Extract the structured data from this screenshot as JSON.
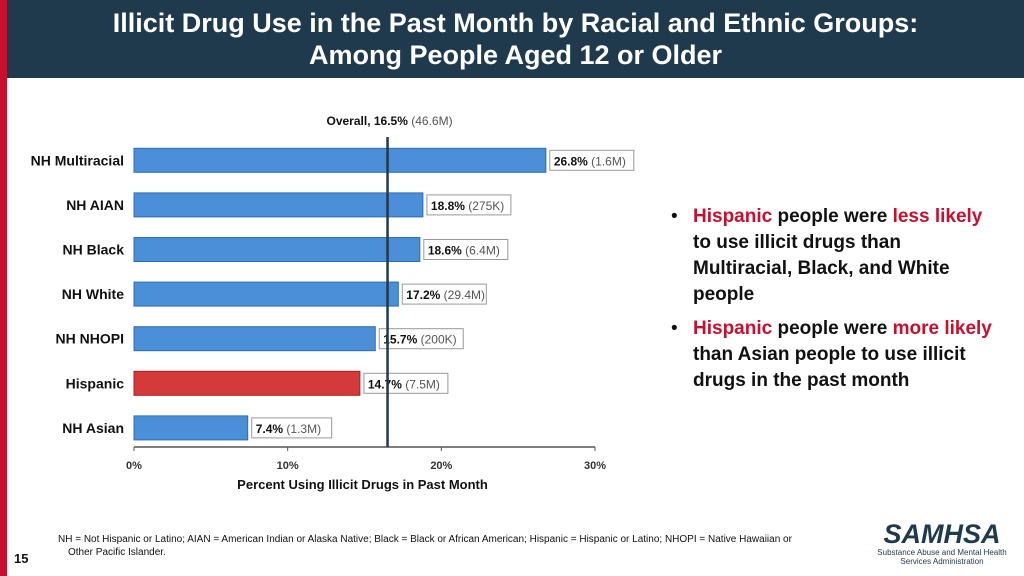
{
  "header": {
    "title_line1": "Illicit Drug Use in the Past Month by Racial and Ethnic Groups:",
    "title_line2": "Among People Aged 12 or Older"
  },
  "colors": {
    "header_bg": "#1f3a4d",
    "accent_red": "#c8102e",
    "bar_blue": "#4a8fd8",
    "bar_highlight": "#d43a3a",
    "overall_line": "#1f3a4d"
  },
  "chart_data": {
    "type": "bar",
    "orientation": "horizontal",
    "categories": [
      "NH Multiracial",
      "NH AIAN",
      "NH Black",
      "NH White",
      "NH NHOPI",
      "Hispanic",
      "NH Asian"
    ],
    "values": [
      26.8,
      18.8,
      18.6,
      17.2,
      15.7,
      14.7,
      7.4
    ],
    "labels": [
      "26.8%",
      "18.8%",
      "18.6%",
      "17.2%",
      "15.7%",
      "14.7%",
      "7.4%"
    ],
    "counts": [
      "(1.6M)",
      "(275K)",
      "(6.4M)",
      "(29.4M)",
      "(200K)",
      "(7.5M)",
      "(1.3M)"
    ],
    "highlight": "Hispanic",
    "reference_line": {
      "value": 16.5,
      "label": "Overall, 16.5%",
      "count": "(46.6M)"
    },
    "xlabel": "Percent Using Illicit Drugs in Past Month",
    "xlim": [
      0,
      30
    ],
    "xticks": [
      0,
      10,
      20,
      30
    ],
    "xtick_labels": [
      "0%",
      "10%",
      "20%",
      "30%"
    ]
  },
  "bullets": [
    {
      "segments": [
        {
          "text": "Hispanic",
          "accent": true
        },
        {
          "text": " people were ",
          "accent": false
        },
        {
          "text": "less likely",
          "accent": true
        },
        {
          "text": " to use illicit drugs than Multiracial, Black, and White people",
          "accent": false
        }
      ]
    },
    {
      "segments": [
        {
          "text": "Hispanic",
          "accent": true
        },
        {
          "text": " people were ",
          "accent": false
        },
        {
          "text": "more likely",
          "accent": true
        },
        {
          "text": " than Asian people to use illicit drugs in the past month",
          "accent": false
        }
      ]
    }
  ],
  "footnote": {
    "line1": "NH = Not Hispanic or Latino; AIAN = American Indian or Alaska Native; Black = Black or African American; Hispanic = Hispanic or Latino; NHOPI = Native Hawaiian or",
    "line2": "Other Pacific Islander."
  },
  "page_number": "15",
  "logo": {
    "word": "SAMHSA",
    "subtitle_line1": "Substance Abuse and Mental Health",
    "subtitle_line2": "Services Administration"
  }
}
